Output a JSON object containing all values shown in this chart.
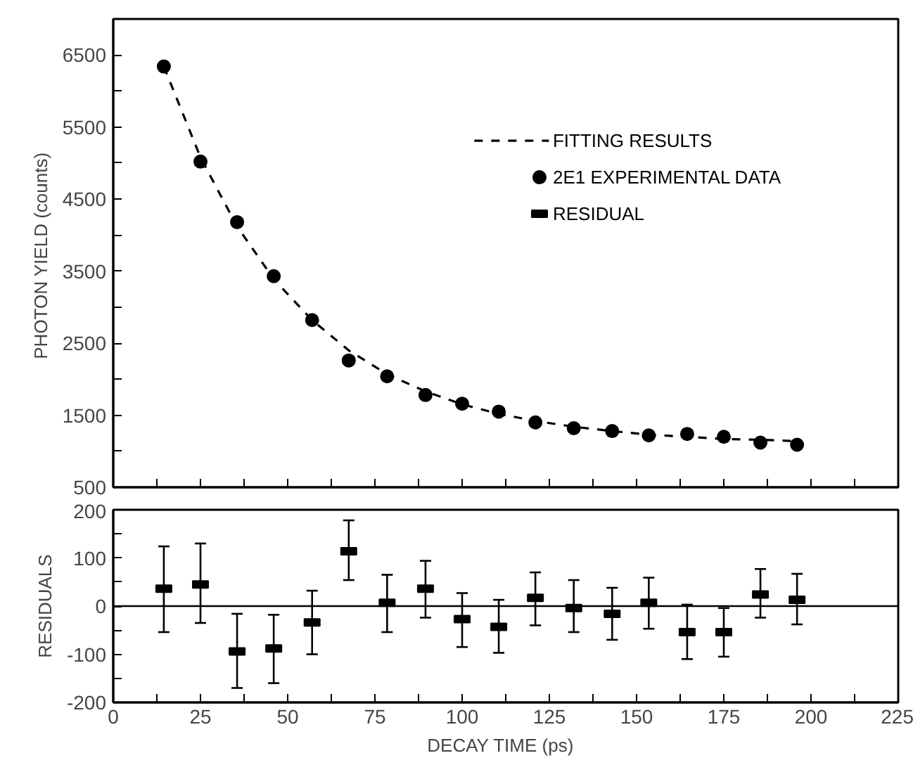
{
  "chart_data": [
    {
      "type": "scatter",
      "ylabel": "PHOTON YIELD  (counts)",
      "xlim": [
        0,
        225
      ],
      "ylim": [
        500,
        7000
      ],
      "xticks": [
        0,
        {
          "value": 12.5,
          "label": null
        },
        25,
        {
          "value": 37.5,
          "label": null
        },
        50,
        {
          "value": 62.5,
          "label": null
        },
        75,
        {
          "value": 87.5,
          "label": null
        },
        100,
        {
          "value": 112.5,
          "label": null
        },
        125,
        {
          "value": 137.5,
          "label": null
        },
        150,
        {
          "value": 162.5,
          "label": null
        },
        175,
        {
          "value": 187.5,
          "label": null
        },
        200,
        {
          "value": 212.5,
          "label": null
        },
        225
      ],
      "yticks": [
        500,
        {
          "value": 1000,
          "label": null
        },
        1500,
        {
          "value": 2000,
          "label": null
        },
        2500,
        {
          "value": 3000,
          "label": null
        },
        3500,
        {
          "value": 4000,
          "label": null
        },
        4500,
        {
          "value": 5000,
          "label": null
        },
        5500,
        {
          "value": 6000,
          "label": null
        },
        6500
      ],
      "tick_labels": "y",
      "grid": false,
      "legend": "top right",
      "x": [
        14.5,
        25,
        35.5,
        46,
        57,
        67.5,
        78.5,
        89.5,
        100,
        110.5,
        121,
        132,
        143,
        153.5,
        164.5,
        175,
        185.5,
        196
      ],
      "series": [
        {
          "name": "FITTING RESULTS",
          "type": "line",
          "line_style": "dashed",
          "color": "#000000",
          "values": [
            6340,
            5080,
            4120,
            3390,
            2820,
            2400,
            2070,
            1830,
            1650,
            1520,
            1420,
            1340,
            1280,
            1230,
            1200,
            1170,
            1160,
            1140
          ]
        },
        {
          "name": "2E1 EXPERIMENTAL DATA",
          "marker": "circle",
          "color": "#000000",
          "values": [
            6340,
            5020,
            4180,
            3430,
            2820,
            2260,
            2040,
            1780,
            1660,
            1550,
            1400,
            1320,
            1280,
            1220,
            1240,
            1200,
            1120,
            1090
          ]
        }
      ]
    },
    {
      "type": "scatter",
      "xlabel": "DECAY  TIME  (ps)",
      "ylabel": "RESIDUALS",
      "xlim": [
        0,
        225
      ],
      "ylim": [
        -200,
        200
      ],
      "xticks": [
        0,
        {
          "value": 12.5,
          "label": null
        },
        25,
        {
          "value": 37.5,
          "label": null
        },
        50,
        {
          "value": 62.5,
          "label": null
        },
        75,
        {
          "value": 87.5,
          "label": null
        },
        100,
        {
          "value": 112.5,
          "label": null
        },
        125,
        {
          "value": 137.5,
          "label": null
        },
        150,
        {
          "value": 162.5,
          "label": null
        },
        175,
        {
          "value": 187.5,
          "label": null
        },
        200,
        {
          "value": 212.5,
          "label": null
        },
        225
      ],
      "yticks": [
        -200,
        {
          "value": -150,
          "label": null
        },
        -100,
        {
          "value": -50,
          "label": null
        },
        0,
        {
          "value": 50,
          "label": null
        },
        100,
        {
          "value": 150,
          "label": null
        },
        200
      ],
      "grid": false,
      "ref_lines": [
        {
          "axis": "y",
          "value": 0,
          "color": "#000000"
        }
      ],
      "x": [
        14.5,
        25,
        35.5,
        46,
        57,
        67.5,
        78.5,
        89.5,
        100,
        110.5,
        121,
        132,
        143,
        153.5,
        164.5,
        175,
        185.5,
        196
      ],
      "series": [
        {
          "name": "RESIDUAL",
          "marker": "square",
          "color": "#000000",
          "values": [
            36,
            45,
            -94,
            -88,
            -34,
            114,
            7,
            36,
            -27,
            -43,
            17,
            -4,
            -16,
            7,
            -54,
            -54,
            24,
            13
          ],
          "errors": [
            [
              -54,
              124
            ],
            [
              -35,
              130
            ],
            [
              -170,
              -16
            ],
            [
              -160,
              -18
            ],
            [
              -100,
              32
            ],
            [
              54,
              178
            ],
            [
              -54,
              65
            ],
            [
              -24,
              94
            ],
            [
              -85,
              27
            ],
            [
              -97,
              13
            ],
            [
              -40,
              70
            ],
            [
              -54,
              54
            ],
            [
              -70,
              38
            ],
            [
              -47,
              59
            ],
            [
              -110,
              3
            ],
            [
              -105,
              -4
            ],
            [
              -24,
              77
            ],
            [
              -38,
              67
            ]
          ]
        }
      ]
    }
  ]
}
